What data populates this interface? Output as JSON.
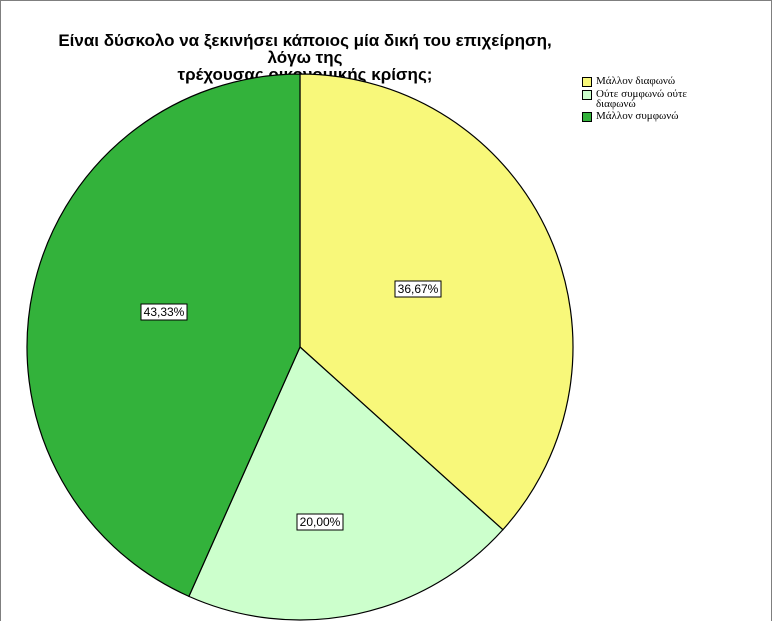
{
  "chart_data": {
    "type": "pie",
    "title": "Είναι δύσκολο να ξεκινήσει κάποιος μία δική του επιχείρηση, λόγω της τρέχουσας οικονομικής κρίσης;",
    "title_lines": [
      "Είναι δύσκολο να ξεκινήσει κάποιος μία δική του επιχείρηση, λόγω της",
      "τρέχουσας οικονομικής κρίσης;"
    ],
    "slices": [
      {
        "label": "Μάλλον διαφωνώ",
        "value": 36.67,
        "value_label": "36,67%",
        "color": "#f8f87a"
      },
      {
        "label": "Ούτε συμφωνώ ούτε διαφωνώ",
        "value": 20.0,
        "value_label": "20,00%",
        "color": "#ccffcc"
      },
      {
        "label": "Μάλλον συμφωνώ",
        "value": 43.33,
        "value_label": "43,33%",
        "color": "#33b23b"
      }
    ],
    "legend_position": "top-right",
    "start_angle": "12 o'clock",
    "direction": "clockwise"
  }
}
